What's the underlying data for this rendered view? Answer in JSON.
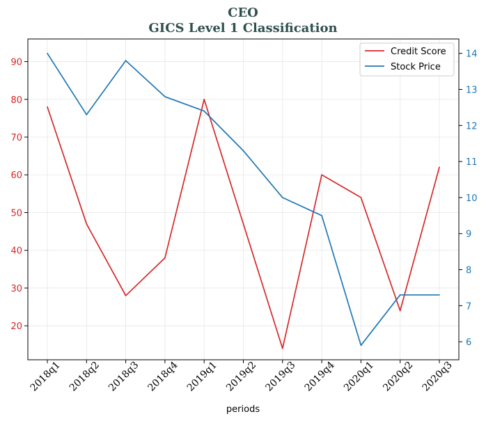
{
  "chart_data": {
    "type": "line",
    "title": "CEO",
    "subtitle": "GICS Level 1 Classification",
    "xlabel": "periods",
    "categories": [
      "2018q1",
      "2018q2",
      "2018q3",
      "2018q4",
      "2019q1",
      "2019q2",
      "2019q3",
      "2019q4",
      "2020q1",
      "2020q2",
      "2020q3"
    ],
    "series": [
      {
        "name": "Credit Score",
        "axis": "left",
        "color": "#d62728",
        "values": [
          78,
          47,
          28,
          38,
          80,
          47,
          14,
          60,
          54,
          24,
          62
        ]
      },
      {
        "name": "Stock Price",
        "axis": "right",
        "color": "#1f77b4",
        "values": [
          14.0,
          12.3,
          13.8,
          12.8,
          12.4,
          11.3,
          10.0,
          9.5,
          5.9,
          7.3,
          7.3
        ]
      }
    ],
    "y_left": {
      "ylim": [
        11,
        96
      ],
      "ticks": [
        20,
        30,
        40,
        50,
        60,
        70,
        80,
        90
      ],
      "color": "#d62728"
    },
    "y_right": {
      "ylim": [
        5.5,
        14.4
      ],
      "ticks": [
        6,
        7,
        8,
        9,
        10,
        11,
        12,
        13,
        14
      ],
      "color": "#1f77b4"
    },
    "grid": true,
    "legend_position": "top-right",
    "title_color": "#2f4f4f"
  }
}
